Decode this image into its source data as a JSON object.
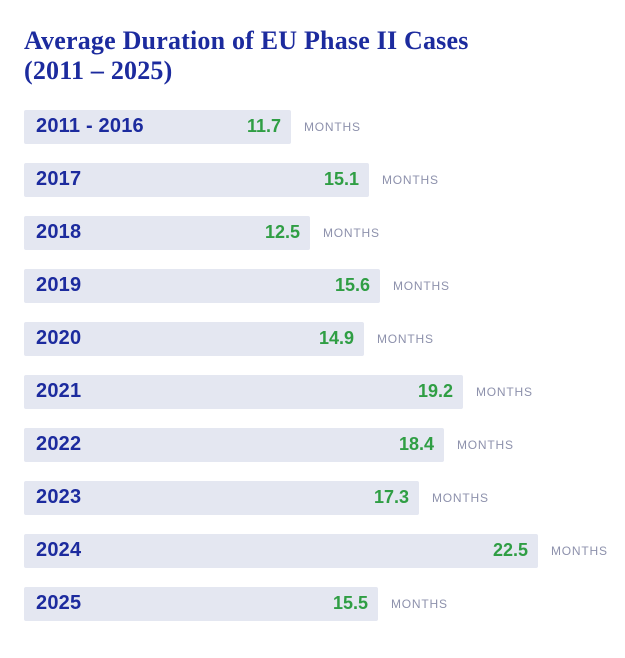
{
  "title": "Average Duration of EU Phase II Cases (2011 – 2025)",
  "unit_label": "MONTHS",
  "colors": {
    "navy": "#1c2b9e",
    "green": "#2f9e44",
    "bar_bg": "#e4e7f1",
    "months_gray": "#8d91ac",
    "page_bg": "#ffffff"
  },
  "chart_data": {
    "type": "bar",
    "orientation": "horizontal",
    "title": "Average Duration of EU Phase II Cases (2011 – 2025)",
    "categories": [
      "2011 - 2016",
      "2017",
      "2018",
      "2019",
      "2020",
      "2021",
      "2022",
      "2023",
      "2024",
      "2025"
    ],
    "values": [
      11.7,
      15.1,
      12.5,
      15.6,
      14.9,
      19.2,
      18.4,
      17.3,
      22.5,
      15.5
    ],
    "unit": "MONTHS",
    "xlabel": "",
    "ylabel": "",
    "xlim": [
      0,
      22.5
    ],
    "value_labels_shown": true,
    "grid": false,
    "legend": false
  }
}
